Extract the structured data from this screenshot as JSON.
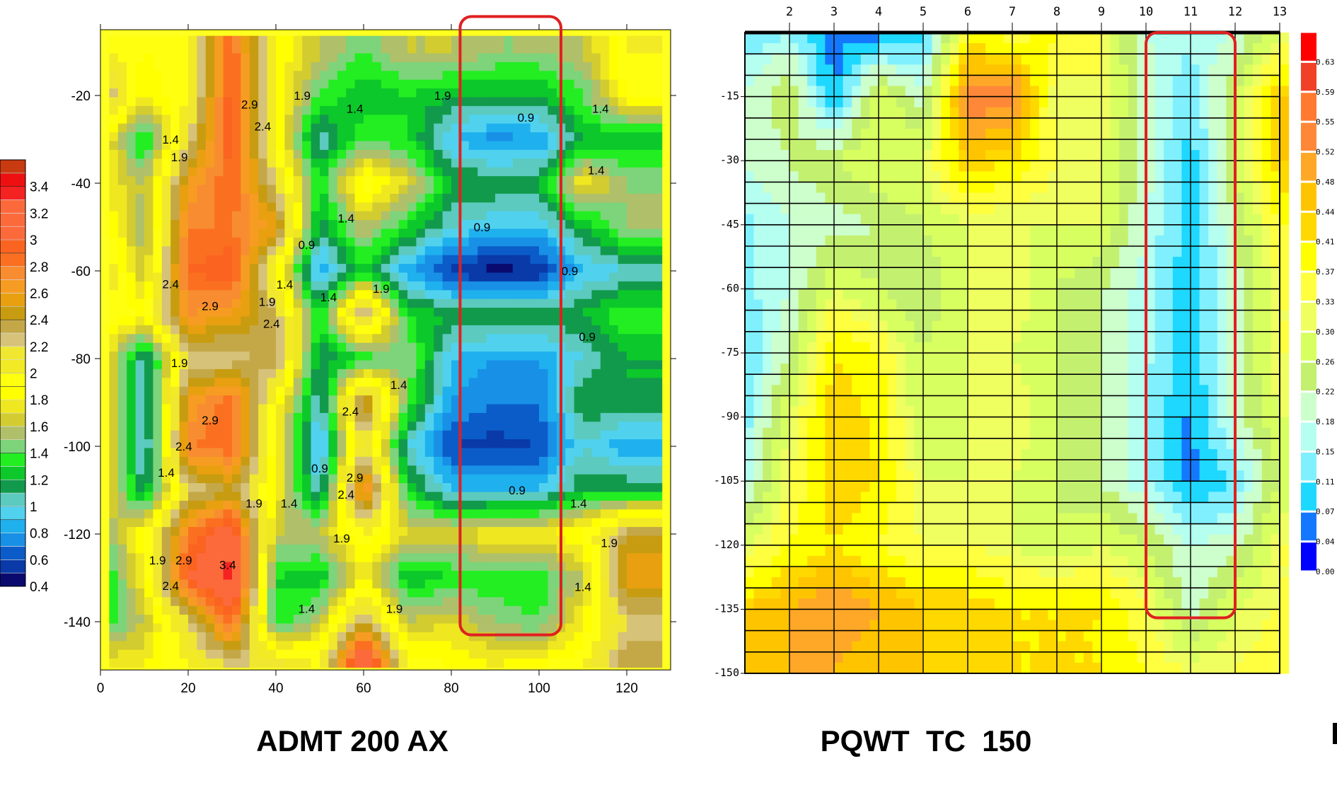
{
  "titles": {
    "left": "ADMT 200 AX",
    "right": "PQWT  TC  150"
  },
  "chart_data": [
    {
      "type": "heatmap",
      "subtype": "filled-contour",
      "title": "ADMT 200 AX",
      "xlabel": "",
      "ylabel": "",
      "xlim": [
        0,
        130
      ],
      "ylim": [
        -151,
        -5
      ],
      "x_ticks": [
        0,
        20,
        40,
        60,
        80,
        100,
        120
      ],
      "y_ticks": [
        -20,
        -40,
        -60,
        -80,
        -100,
        -120,
        -140
      ],
      "grid": false,
      "x": [
        0,
        10,
        20,
        30,
        40,
        50,
        60,
        70,
        80,
        90,
        100,
        110,
        120
      ],
      "y": [
        -10,
        -20,
        -30,
        -40,
        -50,
        -60,
        -70,
        -80,
        -90,
        -100,
        -110,
        -120,
        -130,
        -140,
        -150
      ],
      "z": [
        [
          2.0,
          1.9,
          2.0,
          2.9,
          1.9,
          1.6,
          1.4,
          1.6,
          1.6,
          1.5,
          1.5,
          1.6,
          2.0
        ],
        [
          2.4,
          1.8,
          2.0,
          3.0,
          1.9,
          1.4,
          1.2,
          1.3,
          1.2,
          1.2,
          1.2,
          1.4,
          1.9
        ],
        [
          1.9,
          1.2,
          2.2,
          3.0,
          1.9,
          1.0,
          1.4,
          1.3,
          0.9,
          0.75,
          0.8,
          1.2,
          1.2
        ],
        [
          1.8,
          1.6,
          2.6,
          2.9,
          2.2,
          1.3,
          2.0,
          1.7,
          1.2,
          1.2,
          1.2,
          1.8,
          1.5
        ],
        [
          2.0,
          1.5,
          2.8,
          2.8,
          2.6,
          1.1,
          1.6,
          1.3,
          1.0,
          0.9,
          0.9,
          1.2,
          1.5
        ],
        [
          2.2,
          1.6,
          2.9,
          3.0,
          1.9,
          0.8,
          1.3,
          0.8,
          0.55,
          0.45,
          0.5,
          0.9,
          1.0
        ],
        [
          2.0,
          1.9,
          2.7,
          2.6,
          2.3,
          1.3,
          2.4,
          1.3,
          1.2,
          1.2,
          1.2,
          1.2,
          1.4
        ],
        [
          1.9,
          1.0,
          2.2,
          2.2,
          2.4,
          1.1,
          1.3,
          1.5,
          0.9,
          0.8,
          0.8,
          1.0,
          1.2
        ],
        [
          1.9,
          1.0,
          2.6,
          2.9,
          1.9,
          1.0,
          2.6,
          1.4,
          0.8,
          0.7,
          0.7,
          1.2,
          1.2
        ],
        [
          1.9,
          0.9,
          2.8,
          2.9,
          1.8,
          0.8,
          2.2,
          1.0,
          0.6,
          0.55,
          0.6,
          1.0,
          0.8
        ],
        [
          1.9,
          1.1,
          2.2,
          2.4,
          1.8,
          1.0,
          2.8,
          1.3,
          0.9,
          0.9,
          0.9,
          1.2,
          1.2
        ],
        [
          1.4,
          1.9,
          2.8,
          3.2,
          1.6,
          1.6,
          2.0,
          1.7,
          1.7,
          1.8,
          1.8,
          1.9,
          2.4
        ],
        [
          1.2,
          1.8,
          3.0,
          3.4,
          1.3,
          1.2,
          1.8,
          1.2,
          1.3,
          1.3,
          1.3,
          1.6,
          2.6
        ],
        [
          1.3,
          1.6,
          2.2,
          2.9,
          1.3,
          1.6,
          2.4,
          1.6,
          1.7,
          1.5,
          1.4,
          1.8,
          2.2
        ],
        [
          1.8,
          1.8,
          2.0,
          2.2,
          2.2,
          2.0,
          3.4,
          2.0,
          1.9,
          1.8,
          1.9,
          2.0,
          2.4
        ]
      ],
      "colorbar": {
        "min": 0.4,
        "step": 0.1,
        "labels": [
          "3.4",
          "3.2",
          "3",
          "2.8",
          "2.6",
          "2.4",
          "2.2",
          "2",
          "1.8",
          "1.6",
          "1.4",
          "1.2",
          "1",
          "0.8",
          "0.6",
          "0.4"
        ],
        "colors": [
          "#0a0a6e",
          "#0a3aa8",
          "#0b5cc8",
          "#1890e6",
          "#1fb0ee",
          "#50d2ee",
          "#5ccabf",
          "#129a4c",
          "#0cc82a",
          "#22ee22",
          "#7dd47a",
          "#b0c06a",
          "#d2cc30",
          "#efe820",
          "#ffff00",
          "#ffff10",
          "#f2ea24",
          "#f0e830",
          "#d6c278",
          "#c4a848",
          "#c89c10",
          "#e8a010",
          "#f79c22",
          "#f88c30",
          "#fa7020",
          "#fb6420",
          "#fc6a3c",
          "#fc6a3c",
          "#fc6a3c",
          "#f52222",
          "#ee1010",
          "#c83a10"
        ]
      },
      "contour_labels": [
        {
          "text": "1.9",
          "x": 46,
          "y": -20
        },
        {
          "text": "1.9",
          "x": 78,
          "y": -20
        },
        {
          "text": "1.4",
          "x": 58,
          "y": -23
        },
        {
          "text": "1.4",
          "x": 114,
          "y": -23
        },
        {
          "text": "0.9",
          "x": 97,
          "y": -25
        },
        {
          "text": "2.9",
          "x": 34,
          "y": -22
        },
        {
          "text": "2.4",
          "x": 37,
          "y": -27
        },
        {
          "text": "1.4",
          "x": 16,
          "y": -30
        },
        {
          "text": "1.9",
          "x": 18,
          "y": -34
        },
        {
          "text": "1.4",
          "x": 113,
          "y": -37
        },
        {
          "text": "1.4",
          "x": 56,
          "y": -48
        },
        {
          "text": "0.9",
          "x": 87,
          "y": -50
        },
        {
          "text": "0.9",
          "x": 47,
          "y": -54
        },
        {
          "text": "0.9",
          "x": 107,
          "y": -60
        },
        {
          "text": "1.9",
          "x": 64,
          "y": -64
        },
        {
          "text": "2.4",
          "x": 16,
          "y": -63
        },
        {
          "text": "2.9",
          "x": 25,
          "y": -68
        },
        {
          "text": "1.9",
          "x": 38,
          "y": -67
        },
        {
          "text": "1.4",
          "x": 42,
          "y": -66
        },
        {
          "text": "1.4",
          "x": 52,
          "y": -66
        },
        {
          "text": "2.4",
          "x": 39,
          "y": -72
        },
        {
          "text": "0.9",
          "x": 111,
          "y": -75
        },
        {
          "text": "1.9",
          "x": 18,
          "y": -81
        },
        {
          "text": "1.4",
          "x": 68,
          "y": -86
        },
        {
          "text": "2.4",
          "x": 57,
          "y": -92
        },
        {
          "text": "2.9",
          "x": 25,
          "y": -94
        },
        {
          "text": "2.4",
          "x": 19,
          "y": -100
        },
        {
          "text": "0.9",
          "x": 50,
          "y": -105
        },
        {
          "text": "1.4",
          "x": 15,
          "y": -106
        },
        {
          "text": "2.4",
          "x": 56,
          "y": -111
        },
        {
          "text": "2.9",
          "x": 58,
          "y": -110
        },
        {
          "text": "0.9",
          "x": 95,
          "y": -110
        },
        {
          "text": "1.9",
          "x": 35,
          "y": -113
        },
        {
          "text": "1.4",
          "x": 43,
          "y": -113
        },
        {
          "text": "1.4",
          "x": 109,
          "y": -113
        },
        {
          "text": "1.9",
          "x": 55,
          "y": -121
        },
        {
          "text": "1.9",
          "x": 116,
          "y": -122
        },
        {
          "text": "1.9",
          "x": 13,
          "y": -126
        },
        {
          "text": "2.4",
          "x": 16,
          "y": -126
        },
        {
          "text": "2.9",
          "x": 19,
          "y": -126
        },
        {
          "text": "3.4",
          "x": 29,
          "y": -127
        },
        {
          "text": "1.4",
          "x": 110,
          "y": -132
        },
        {
          "text": "1.4",
          "x": 47,
          "y": -137
        },
        {
          "text": "1.9",
          "x": 67,
          "y": -137
        }
      ],
      "highlight_box": {
        "color": "#e02020",
        "x": [
          82,
          105
        ],
        "y": [
          -2,
          -143
        ]
      }
    },
    {
      "type": "heatmap",
      "subtype": "filled-contour",
      "title": "PQWT  TC  150",
      "xlabel": "",
      "ylabel": "",
      "xlim": [
        1,
        13
      ],
      "ylim": [
        -150,
        0
      ],
      "x_ticks": [
        2,
        3,
        4,
        5,
        6,
        7,
        8,
        9,
        10,
        11,
        12,
        13
      ],
      "y_ticks": [
        -15,
        -30,
        -45,
        -60,
        -75,
        -90,
        -105,
        -120,
        -135,
        -150
      ],
      "grid": true,
      "x": [
        1,
        2,
        3,
        4,
        5,
        6,
        7,
        8,
        9,
        10,
        11,
        12,
        13
      ],
      "y": [
        0,
        -15,
        -30,
        -45,
        -60,
        -75,
        -90,
        -105,
        -120,
        -135,
        -150
      ],
      "z": [
        [
          0.12,
          0.15,
          0.05,
          0.05,
          0.09,
          0.37,
          0.35,
          0.38,
          0.33,
          0.18,
          0.16,
          0.18,
          0.3
        ],
        [
          0.18,
          0.26,
          0.06,
          0.3,
          0.2,
          0.55,
          0.55,
          0.3,
          0.33,
          0.2,
          0.12,
          0.26,
          0.44
        ],
        [
          0.18,
          0.22,
          0.26,
          0.3,
          0.3,
          0.44,
          0.41,
          0.33,
          0.3,
          0.2,
          0.09,
          0.26,
          0.44
        ],
        [
          0.14,
          0.18,
          0.2,
          0.22,
          0.26,
          0.3,
          0.3,
          0.3,
          0.3,
          0.18,
          0.09,
          0.22,
          0.37
        ],
        [
          0.14,
          0.18,
          0.3,
          0.26,
          0.22,
          0.3,
          0.33,
          0.26,
          0.22,
          0.16,
          0.08,
          0.2,
          0.33
        ],
        [
          0.1,
          0.22,
          0.41,
          0.37,
          0.26,
          0.3,
          0.3,
          0.26,
          0.22,
          0.16,
          0.08,
          0.2,
          0.33
        ],
        [
          0.13,
          0.3,
          0.44,
          0.4,
          0.26,
          0.3,
          0.33,
          0.26,
          0.22,
          0.15,
          0.06,
          0.2,
          0.3
        ],
        [
          0.16,
          0.33,
          0.44,
          0.41,
          0.3,
          0.3,
          0.3,
          0.26,
          0.22,
          0.15,
          0.06,
          0.12,
          0.26
        ],
        [
          0.3,
          0.37,
          0.41,
          0.37,
          0.33,
          0.33,
          0.3,
          0.26,
          0.3,
          0.26,
          0.18,
          0.2,
          0.33
        ],
        [
          0.44,
          0.48,
          0.52,
          0.48,
          0.44,
          0.44,
          0.41,
          0.41,
          0.41,
          0.33,
          0.2,
          0.3,
          0.33
        ],
        [
          0.44,
          0.48,
          0.48,
          0.44,
          0.44,
          0.41,
          0.41,
          0.41,
          0.41,
          0.37,
          0.33,
          0.33,
          0.37
        ]
      ],
      "colorbar": {
        "boundaries": [
          0,
          0.04,
          0.07,
          0.11,
          0.15,
          0.18,
          0.22,
          0.26,
          0.3,
          0.33,
          0.37,
          0.41,
          0.44,
          0.48,
          0.52,
          0.55,
          0.59,
          0.63
        ],
        "labels": [
          "0.00",
          "0.04",
          "0.07",
          "0.11",
          "0.15",
          "0.18",
          "0.22",
          "0.26",
          "0.30",
          "0.33",
          "0.37",
          "0.41",
          "0.44",
          "0.48",
          "0.52",
          "0.55",
          "0.59",
          "0.63"
        ],
        "colors": [
          "#0000ff",
          "#1478ff",
          "#1ed8ff",
          "#80f0ff",
          "#b4fff0",
          "#ccffcc",
          "#c4f070",
          "#d8ff60",
          "#f0ff60",
          "#ffff40",
          "#ffff00",
          "#ffd800",
          "#ffc400",
          "#ffa828",
          "#ff8838",
          "#ff7a30",
          "#f04028",
          "#ff0000"
        ]
      },
      "highlight_box": {
        "color": "#e02020",
        "x": [
          10,
          12
        ],
        "y": [
          0,
          -137
        ]
      }
    }
  ]
}
